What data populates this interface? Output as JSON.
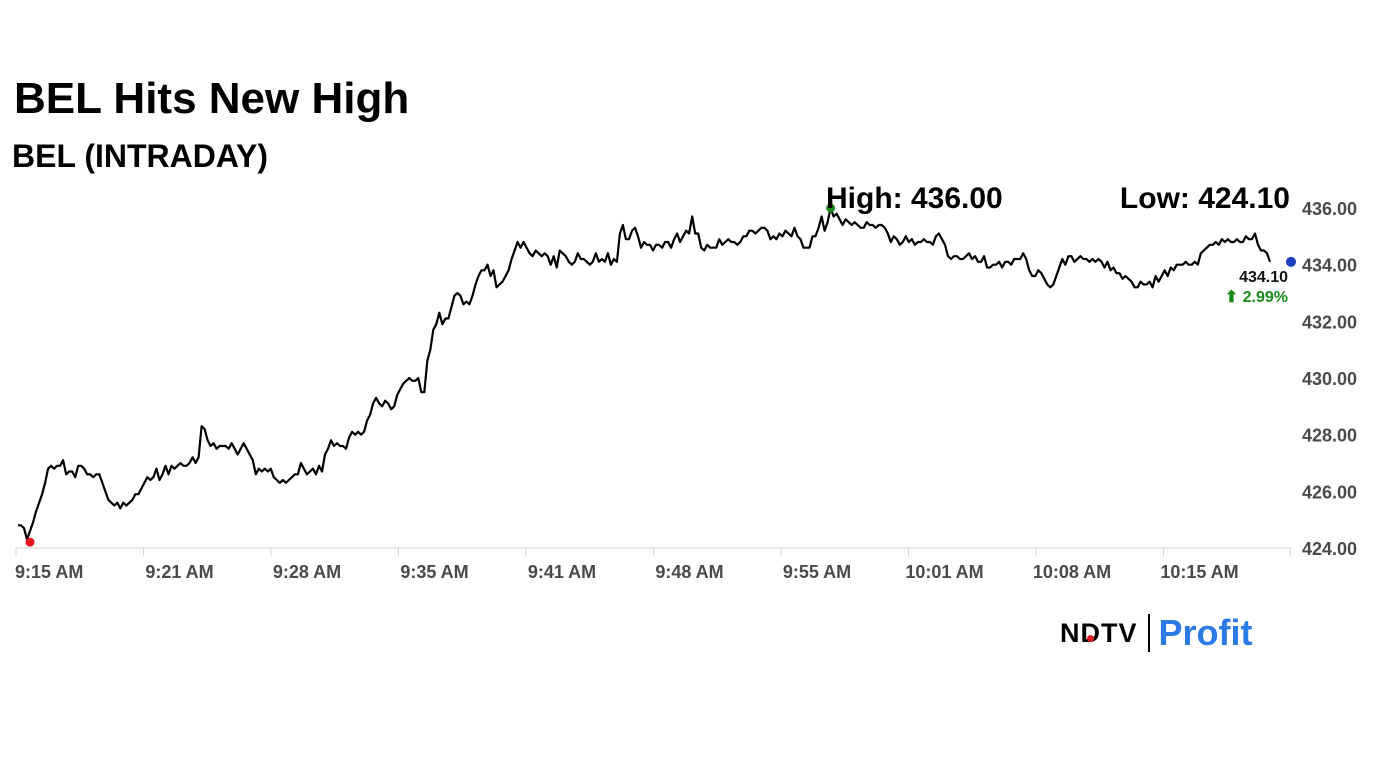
{
  "header": {
    "title": "BEL Hits New High",
    "subtitle": "BEL (INTRADAY)"
  },
  "chart_data": {
    "type": "line",
    "x_tick_labels": [
      "9:15 AM",
      "9:21 AM",
      "9:28 AM",
      "9:35 AM",
      "9:41 AM",
      "9:48 AM",
      "9:55 AM",
      "10:01 AM",
      "10:08 AM",
      "10:15 AM"
    ],
    "y_tick_labels": [
      "424.00",
      "426.00",
      "428.00",
      "430.00",
      "432.00",
      "434.00",
      "436.00"
    ],
    "ylim": [
      424,
      436
    ],
    "grid": false,
    "y_axis_position": "right",
    "series": [
      {
        "values": [
          424.8,
          424.8,
          424.7,
          424.3,
          424.6,
          424.9,
          425.3,
          425.6,
          425.9,
          426.3,
          426.8,
          426.9,
          426.8,
          426.9,
          426.9,
          427.1,
          426.6,
          426.7,
          426.7,
          426.5,
          426.9,
          426.9,
          426.8,
          426.6,
          426.6,
          426.5,
          426.6,
          426.6,
          426.3,
          426.0,
          425.7,
          425.6,
          425.5,
          425.6,
          425.4,
          425.6,
          425.5,
          425.6,
          425.7,
          425.9,
          425.9,
          426.1,
          426.3,
          426.5,
          426.4,
          426.5,
          426.8,
          426.4,
          426.6,
          426.9,
          426.6,
          426.9,
          426.8,
          426.9,
          427.0,
          426.9,
          426.9,
          427.0,
          427.2,
          427.0,
          427.2,
          428.3,
          428.2,
          427.8,
          427.6,
          427.7,
          427.5,
          427.6,
          427.6,
          427.6,
          427.5,
          427.7,
          427.5,
          427.3,
          427.5,
          427.7,
          427.5,
          427.3,
          427.1,
          426.6,
          426.8,
          426.7,
          426.8,
          426.7,
          426.8,
          426.5,
          426.4,
          426.3,
          426.4,
          426.3,
          426.4,
          426.5,
          426.6,
          426.6,
          427.0,
          426.8,
          426.6,
          426.7,
          426.8,
          426.6,
          426.9,
          426.7,
          427.3,
          427.5,
          427.8,
          427.6,
          427.7,
          427.6,
          427.6,
          427.5,
          427.9,
          428.1,
          428.0,
          428.1,
          428.0,
          428.1,
          428.5,
          428.7,
          429.1,
          429.3,
          429.1,
          429.0,
          429.2,
          429.1,
          428.9,
          429.0,
          429.4,
          429.6,
          429.8,
          429.9,
          430.0,
          429.9,
          429.9,
          430.0,
          429.5,
          429.5,
          430.6,
          431.0,
          431.7,
          431.9,
          432.3,
          431.9,
          432.1,
          432.1,
          432.5,
          432.9,
          433.0,
          432.9,
          432.6,
          432.7,
          432.6,
          432.9,
          433.3,
          433.6,
          433.8,
          433.8,
          434.0,
          433.6,
          433.8,
          433.2,
          433.3,
          433.4,
          433.6,
          433.8,
          434.2,
          434.5,
          434.8,
          434.6,
          434.8,
          434.6,
          434.4,
          434.3,
          434.5,
          434.4,
          434.3,
          434.4,
          434.3,
          434.0,
          434.3,
          433.9,
          434.5,
          434.4,
          434.3,
          434.1,
          434.0,
          434.1,
          434.4,
          434.2,
          434.2,
          434.1,
          434.0,
          434.1,
          434.4,
          434.1,
          434.2,
          434.1,
          434.4,
          434.0,
          434.2,
          434.1,
          435.1,
          435.4,
          434.9,
          434.9,
          435.2,
          435.3,
          435.0,
          434.6,
          434.8,
          434.7,
          434.7,
          434.5,
          434.7,
          434.7,
          434.6,
          434.8,
          434.8,
          434.6,
          434.9,
          435.1,
          434.8,
          435.0,
          435.2,
          435.1,
          435.7,
          435.1,
          435.1,
          434.6,
          434.5,
          434.7,
          434.6,
          434.6,
          434.6,
          434.9,
          434.7,
          434.8,
          434.9,
          434.8,
          434.8,
          434.7,
          434.8,
          435.0,
          435.0,
          435.2,
          435.2,
          435.1,
          435.2,
          435.3,
          435.3,
          435.2,
          434.9,
          435.0,
          434.9,
          435.1,
          435.0,
          435.2,
          435.1,
          435.0,
          435.3,
          435.0,
          434.9,
          434.6,
          434.6,
          434.6,
          435.0,
          435.0,
          435.3,
          435.7,
          435.2,
          435.5,
          436.0,
          435.7,
          435.8,
          435.6,
          435.4,
          435.6,
          435.5,
          435.4,
          435.5,
          435.4,
          435.3,
          435.3,
          435.5,
          435.4,
          435.4,
          435.3,
          435.4,
          435.4,
          435.3,
          435.1,
          434.8,
          435.0,
          434.9,
          434.7,
          434.8,
          435.0,
          434.8,
          434.9,
          434.7,
          434.8,
          434.8,
          434.9,
          434.8,
          434.8,
          434.7,
          435.0,
          435.1,
          434.9,
          434.7,
          434.3,
          434.2,
          434.3,
          434.3,
          434.2,
          434.2,
          434.3,
          434.4,
          434.2,
          434.3,
          434.1,
          434.1,
          434.3,
          433.9,
          433.9,
          434.0,
          434.0,
          434.1,
          433.9,
          434.1,
          434.1,
          434.0,
          434.2,
          434.2,
          434.2,
          434.4,
          434.2,
          433.8,
          433.6,
          433.6,
          433.8,
          433.7,
          433.5,
          433.3,
          433.2,
          433.3,
          433.6,
          433.9,
          434.2,
          434.0,
          434.3,
          434.3,
          434.1,
          434.2,
          434.3,
          434.2,
          434.2,
          434.1,
          434.2,
          434.1,
          434.2,
          434.1,
          433.9,
          434.1,
          433.8,
          433.9,
          433.7,
          433.7,
          433.5,
          433.6,
          433.5,
          433.4,
          433.2,
          433.2,
          433.4,
          433.3,
          433.3,
          433.4,
          433.2,
          433.6,
          433.4,
          433.6,
          433.8,
          433.6,
          433.9,
          433.8,
          434.0,
          434.0,
          434.0,
          434.1,
          434.0,
          434.0,
          434.1,
          434.0,
          434.4,
          434.5,
          434.6,
          434.7,
          434.7,
          434.8,
          434.7,
          434.9,
          434.8,
          434.9,
          434.8,
          434.8,
          434.9,
          434.8,
          434.8,
          435.0,
          434.9,
          434.9,
          435.1,
          434.7,
          434.5,
          434.5,
          434.4,
          434.1
        ]
      }
    ],
    "annotations": {
      "high_label": "High: 436.00",
      "low_label": "Low: 424.10",
      "last_value_label": "434.10",
      "change_label": "⬆ 2.99%"
    },
    "marker_colors": {
      "low": "#e8141c",
      "high": "#1a8a1a",
      "last": "#1f3fbf",
      "line": "#000000"
    }
  },
  "logo": {
    "brand": "NDTV",
    "product": "Profit"
  }
}
